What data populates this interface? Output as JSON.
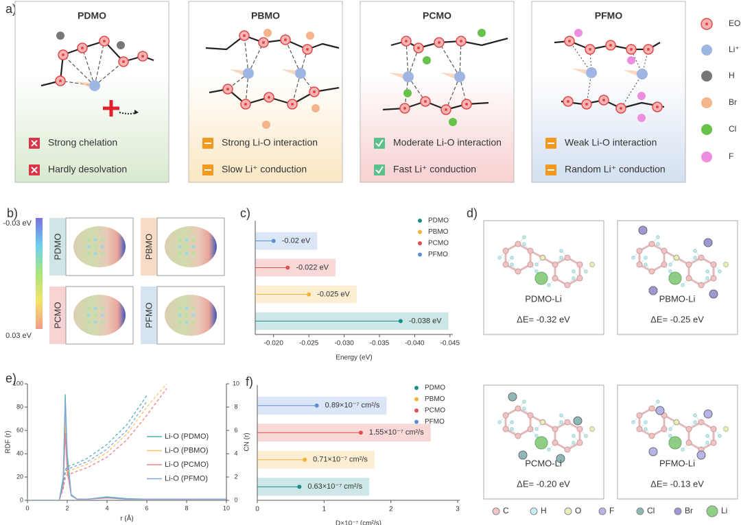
{
  "panels": {
    "a": {
      "label": "a)",
      "boxes": [
        {
          "title": "PDMO",
          "tint": "#d9ead0",
          "items": [
            {
              "text": "Strong chelation",
              "icon": "cross"
            },
            {
              "text": "Hardly desolvation",
              "icon": "cross"
            }
          ]
        },
        {
          "title": "PBMO",
          "tint": "#fbe7c4",
          "items": [
            {
              "text": "Strong Li-O interaction",
              "icon": "minus"
            },
            {
              "text": "Slow Li⁺ conduction",
              "icon": "minus"
            }
          ]
        },
        {
          "title": "PCMO",
          "tint": "#f8d0d0",
          "items": [
            {
              "text": "Moderate Li-O interaction",
              "icon": "check"
            },
            {
              "text": "Fast Li⁺ conduction",
              "icon": "check"
            }
          ]
        },
        {
          "title": "PFMO",
          "tint": "#d3dff0",
          "items": [
            {
              "text": "Weak Li-O interaction",
              "icon": "minus"
            },
            {
              "text": "Random Li⁺ conduction",
              "icon": "minus"
            }
          ]
        }
      ],
      "legend": [
        {
          "name": "EO",
          "color": "#f7b3b3",
          "stroke": "#e04848"
        },
        {
          "name": "Li⁺",
          "color": "#9fb6e3"
        },
        {
          "name": "H",
          "color": "#777777"
        },
        {
          "name": "Br",
          "color": "#f4b48c"
        },
        {
          "name": "Cl",
          "color": "#66c24a"
        },
        {
          "name": "F",
          "color": "#ee8ee0"
        }
      ]
    },
    "b": {
      "label": "b)",
      "scale_top": "-0.03 eV",
      "scale_bottom": "0.03 eV",
      "molecules": [
        {
          "name": "PDMO",
          "tint": "#cfe5e6"
        },
        {
          "name": "PBMO",
          "tint": "#f8dcc8"
        },
        {
          "name": "PCMO",
          "tint": "#f8d3d3"
        },
        {
          "name": "PFMO",
          "tint": "#d6e4f2"
        }
      ]
    },
    "c": {
      "label": "c)"
    },
    "d": {
      "label": "d)",
      "molecules": [
        {
          "name": "PDMO-Li",
          "energy": "ΔE= -0.32 eV"
        },
        {
          "name": "PBMO-Li",
          "energy": "ΔE= -0.25 eV"
        },
        {
          "name": "PCMO-Li",
          "energy": "ΔE= -0.20 eV"
        },
        {
          "name": "PFMO-Li",
          "energy": "ΔE= -0.13 eV"
        }
      ],
      "legend": [
        {
          "name": "C",
          "color": "#f0c4c4"
        },
        {
          "name": "H",
          "color": "#c8eef0"
        },
        {
          "name": "O",
          "color": "#eeeebb"
        },
        {
          "name": "F",
          "color": "#b7b5e6"
        },
        {
          "name": "Cl",
          "color": "#8fb8b4"
        },
        {
          "name": "Br",
          "color": "#9d98d0"
        },
        {
          "name": "Li",
          "color": "#8fce84"
        }
      ]
    },
    "e": {
      "label": "e)"
    },
    "f": {
      "label": "f)"
    }
  },
  "chart_data": [
    {
      "type": "lollipop",
      "categories": [
        "PDMO",
        "PBMO",
        "PCMO",
        "PFMO"
      ],
      "values": [
        -0.038,
        -0.025,
        -0.022,
        -0.02
      ],
      "value_labels": [
        "-0.038 eV",
        "-0.025 eV",
        "-0.022 eV",
        "-0.02 eV"
      ],
      "colors": [
        "#1b8c8c",
        "#f2b233",
        "#e0504f",
        "#5b8fd6"
      ],
      "xlim": [
        -0.0174,
        -0.0454
      ],
      "xticks": [
        {
          "value": -0.02,
          "label": "-0.020"
        },
        -0.025,
        {
          "value": -0.03,
          "label": "-0.030"
        },
        -0.035,
        {
          "value": -0.04,
          "label": "-0.040"
        },
        -0.045
      ],
      "xlabel": "Energy (eV)",
      "legend": true
    },
    {
      "type": "line",
      "x": [
        0,
        1,
        1.6,
        1.8,
        1.9,
        2.0,
        2.2,
        2.5,
        3,
        4,
        5,
        6,
        7,
        8,
        10
      ],
      "series": [
        {
          "name": "Li-O (PDMO)",
          "color": "#4fb3b0",
          "values": [
            0,
            0,
            0,
            20,
            91,
            40,
            5,
            1,
            1,
            3,
            1.5,
            1,
            1,
            1,
            1
          ]
        },
        {
          "name": "Li-O (PBMO)",
          "color": "#f6c46a",
          "values": [
            0,
            0,
            0,
            15,
            70,
            30,
            4,
            1,
            1,
            2,
            1,
            1,
            1,
            1,
            1
          ]
        },
        {
          "name": "Li-O (PCMO)",
          "color": "#f08080",
          "values": [
            0,
            0,
            0,
            12,
            58,
            25,
            4,
            1,
            1,
            2,
            1,
            1,
            1,
            1,
            1
          ]
        },
        {
          "name": "Li-O (PFMO)",
          "color": "#7fa6dc",
          "values": [
            0,
            0,
            0,
            18,
            85,
            35,
            4,
            1,
            1,
            2.5,
            1,
            1,
            1,
            1,
            1
          ]
        },
        {
          "color": "#4fb3b0",
          "axis": "y2",
          "dashed": true,
          "values": [
            0,
            0,
            0,
            1.5,
            2.6,
            2.9,
            3,
            3.2,
            3.6,
            4.8,
            6.5,
            9,
            null,
            null,
            null
          ]
        },
        {
          "color": "#f6c46a",
          "axis": "y2",
          "dashed": true,
          "values": [
            0,
            0,
            0,
            1.2,
            2.2,
            2.5,
            2.6,
            2.8,
            3.1,
            4.1,
            5.7,
            8,
            10,
            null,
            null
          ]
        },
        {
          "color": "#f08080",
          "axis": "y2",
          "dashed": true,
          "values": [
            0,
            0,
            0,
            1,
            1.9,
            2.2,
            2.3,
            2.5,
            2.8,
            3.7,
            5.2,
            7.3,
            9.6,
            null,
            null
          ]
        },
        {
          "color": "#7fa6dc",
          "axis": "y2",
          "dashed": true,
          "values": [
            0,
            0,
            0,
            1.3,
            2.4,
            2.7,
            2.8,
            3,
            3.3,
            4.4,
            6,
            8.5,
            null,
            null,
            null
          ]
        }
      ],
      "xlim": [
        0,
        10
      ],
      "xticks": [
        0,
        2,
        4,
        6,
        8,
        10
      ],
      "ylim": [
        0,
        100
      ],
      "yticks": [
        0,
        20,
        40,
        60,
        80,
        100
      ],
      "y2lim": [
        0,
        10
      ],
      "y2ticks": [
        0,
        2,
        4,
        6,
        8,
        10
      ],
      "xlabel": "r (Å)",
      "ylabel": "RDF (r)",
      "y2label": "CN (r)"
    },
    {
      "type": "lollipop",
      "categories": [
        "PDMO",
        "PBMO",
        "PCMO",
        "PFMO"
      ],
      "values": [
        0.63,
        0.71,
        1.55,
        0.89
      ],
      "value_labels": [
        "0.63×10⁻⁷ cm²/s",
        "0.71×10⁻⁷ cm²/s",
        "1.55×10⁻⁷ cm²/s",
        "0.89×10⁻⁷ cm²/s"
      ],
      "colors": [
        "#1b8c8c",
        "#f2b233",
        "#e0504f",
        "#5b8fd6"
      ],
      "xlim": [
        0,
        3.03
      ],
      "xticks": [
        0,
        1,
        2,
        3
      ],
      "xlabel": "D×10⁻⁷ (cm²/s)",
      "legend": true
    }
  ]
}
